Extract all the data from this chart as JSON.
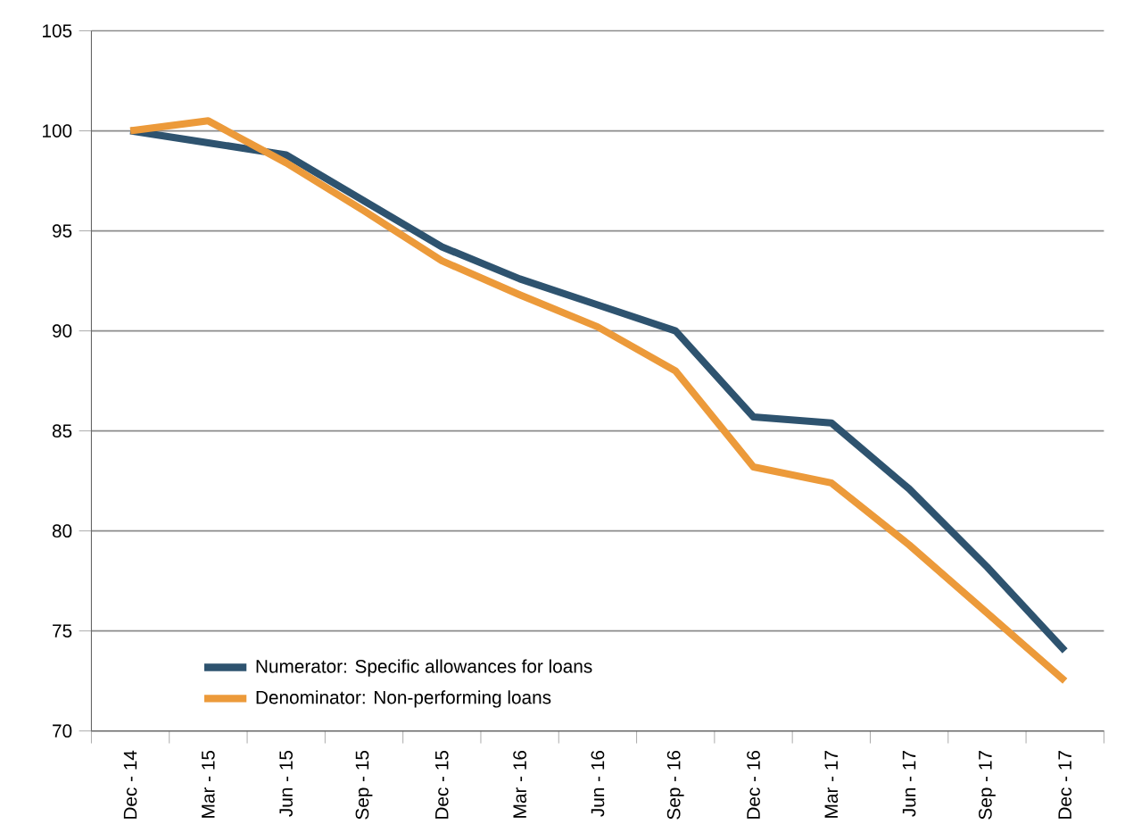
{
  "chart_data": {
    "type": "line",
    "categories": [
      "Dec - 14",
      "Mar - 15",
      "Jun - 15",
      "Sep - 15",
      "Dec - 15",
      "Mar - 16",
      "Jun - 16",
      "Sep - 16",
      "Dec - 16",
      "Mar - 17",
      "Jun - 17",
      "Sep - 17",
      "Dec - 17"
    ],
    "series": [
      {
        "name": "Numerator: Specific allowances for loans",
        "color": "#2e536f",
        "values": [
          100,
          99.4,
          98.8,
          96.5,
          94.2,
          92.6,
          91.3,
          90.0,
          85.7,
          85.4,
          82.1,
          78.2,
          74.0
        ]
      },
      {
        "name": "Denominator: Non-performing loans",
        "color": "#ec9a3a",
        "values": [
          100,
          100.5,
          98.4,
          96.0,
          93.5,
          91.8,
          90.2,
          88.0,
          83.2,
          82.4,
          79.3,
          75.9,
          72.5
        ]
      }
    ],
    "ylim": [
      70,
      105
    ],
    "yticks": [
      70,
      75,
      80,
      85,
      90,
      95,
      100,
      105
    ],
    "grid": "y",
    "legend": "bottom left",
    "marker": "none",
    "line_style": "solid"
  }
}
